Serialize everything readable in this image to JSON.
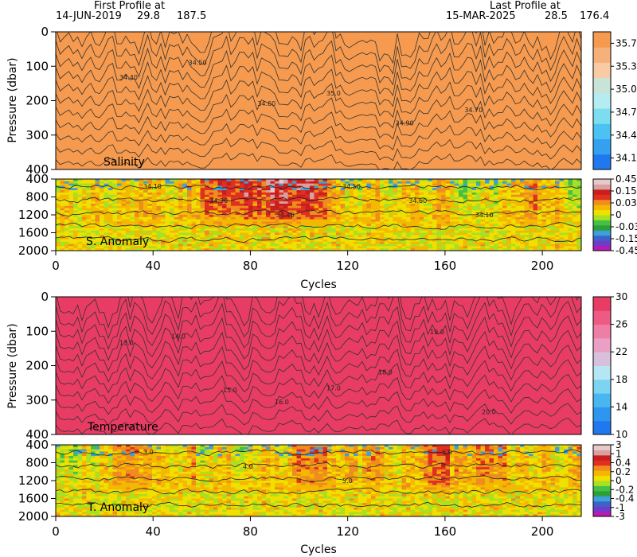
{
  "header": {
    "first_title": "First Profile at",
    "first_date": "14-JUN-2019",
    "first_lat": "29.8",
    "first_lon": "187.5",
    "last_title": "Last Profile at",
    "last_date": "15-MAR-2025",
    "last_lat": "28.5",
    "last_lon": "176.4"
  },
  "chart_data": [
    {
      "type": "heatmap",
      "label": "Salinity",
      "ylabel": "Pressure (dbar)",
      "xlim": [
        0,
        216
      ],
      "ylim": [
        400,
        0
      ],
      "yticks": [
        "0",
        "100",
        "200",
        "300",
        "400"
      ],
      "xticks": [
        "0",
        "40",
        "80",
        "120",
        "160",
        "200"
      ],
      "colorbar_ticks": [
        "35.7",
        "35.38",
        "35.06",
        "34.74",
        "34.42",
        "34.1"
      ],
      "colorbar_range": [
        34.1,
        35.7
      ],
      "colors": [
        "#1f78ee",
        "#34a0f0",
        "#4cc2f2",
        "#7cdcf0",
        "#b5ecf2",
        "#c8e4d8",
        "#f8cba4",
        "#f6b07a",
        "#f59a4e"
      ],
      "contour_labels": [
        "34.40",
        "34.50",
        "34.60",
        "35.0",
        "34.90",
        "34.70"
      ]
    },
    {
      "type": "heatmap",
      "label": "S. Anomaly",
      "xlim": [
        0,
        216
      ],
      "ylim": [
        2000,
        400
      ],
      "yticks": [
        "400",
        "800",
        "1200",
        "1600",
        "2000"
      ],
      "xticks": [
        "0",
        "40",
        "80",
        "120",
        "160",
        "200"
      ],
      "xlabel": "Cycles",
      "colorbar_ticks": [
        "0.45",
        "0.15",
        "0.03",
        "0",
        "-0.03",
        "-0.15",
        "-0.45"
      ],
      "colorbar_range": [
        -0.45,
        0.45
      ],
      "colors": [
        "#b41cb4",
        "#6e3cc8",
        "#3c64c8",
        "#3ca0dc",
        "#2e9e3a",
        "#44c044",
        "#a8e024",
        "#f0e000",
        "#f5b800",
        "#f08c1e",
        "#e23020",
        "#c81e1e",
        "#d8a0a0",
        "#e8c8c8"
      ],
      "contour_labels": [
        "34.10",
        "34.30",
        "34.40",
        "34.50",
        "34.60",
        "34.10"
      ]
    },
    {
      "type": "heatmap",
      "label": "Temperature",
      "ylabel": "Pressure (dbar)",
      "xlim": [
        0,
        216
      ],
      "ylim": [
        400,
        0
      ],
      "yticks": [
        "0",
        "100",
        "200",
        "300",
        "400"
      ],
      "xticks": [
        "0",
        "40",
        "80",
        "120",
        "160",
        "200"
      ],
      "colorbar_ticks": [
        "30",
        "26",
        "22",
        "18",
        "14",
        "10"
      ],
      "colorbar_range": [
        10,
        30
      ],
      "colors": [
        "#1f78ee",
        "#2f96f0",
        "#49b6f2",
        "#7dd4f2",
        "#b4e6f4",
        "#d8c0dc",
        "#eaa0c4",
        "#ee7ea6",
        "#ee5a84",
        "#e83c64"
      ],
      "contour_labels": [
        "13.0",
        "14.0",
        "15.0",
        "16.0",
        "17.0",
        "18.0",
        "19.0",
        "20.0"
      ]
    },
    {
      "type": "heatmap",
      "label": "T. Anomaly",
      "xlim": [
        0,
        216
      ],
      "ylim": [
        2000,
        400
      ],
      "yticks": [
        "400",
        "800",
        "1200",
        "1600",
        "2000"
      ],
      "xticks": [
        "0",
        "40",
        "80",
        "120",
        "160",
        "200"
      ],
      "xlabel": "Cycles",
      "colorbar_ticks": [
        "3",
        "1",
        "0.4",
        "0.2",
        "0",
        "-0.2",
        "-0.4",
        "-1",
        "-3"
      ],
      "colorbar_range": [
        -3,
        3
      ],
      "colors": [
        "#b41cb4",
        "#6e3cc8",
        "#3c64c8",
        "#3ca0dc",
        "#2e9e3a",
        "#44c044",
        "#a8e024",
        "#f0e000",
        "#f5b800",
        "#f08c1e",
        "#e23020",
        "#c81e1e",
        "#d8a0a0",
        "#e8c8c8"
      ],
      "contour_labels": [
        "3.0",
        "4.0",
        "5.0",
        "6.0"
      ]
    }
  ]
}
